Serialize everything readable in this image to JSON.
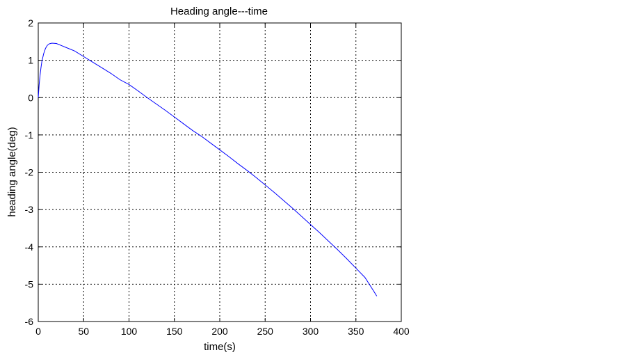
{
  "chart_data": {
    "type": "line",
    "title": "Heading angle---time",
    "xlabel": "time(s)",
    "ylabel": "heading angle(deg)",
    "xlim": [
      0,
      400
    ],
    "ylim": [
      -6,
      2
    ],
    "xticks": [
      0,
      50,
      100,
      150,
      200,
      250,
      300,
      350,
      400
    ],
    "yticks": [
      -6,
      -5,
      -4,
      -3,
      -2,
      -1,
      0,
      1,
      2
    ],
    "grid": true,
    "line_color": "#0000ff",
    "series": [
      {
        "x": [
          0,
          1,
          2,
          3,
          4,
          6,
          8,
          10,
          12,
          15,
          20,
          25,
          30,
          40,
          50,
          60,
          70,
          80,
          90,
          100,
          110,
          120,
          130,
          140,
          150,
          160,
          170,
          180,
          190,
          200,
          210,
          220,
          230,
          240,
          250,
          260,
          270,
          280,
          290,
          300,
          310,
          320,
          330,
          340,
          350,
          360,
          370,
          373
        ],
        "y": [
          0,
          0.35,
          0.6,
          0.8,
          0.97,
          1.18,
          1.32,
          1.4,
          1.44,
          1.46,
          1.45,
          1.4,
          1.35,
          1.25,
          1.1,
          0.95,
          0.8,
          0.65,
          0.48,
          0.35,
          0.18,
          0.0,
          -0.17,
          -0.34,
          -0.52,
          -0.7,
          -0.88,
          -1.04,
          -1.22,
          -1.4,
          -1.58,
          -1.77,
          -1.95,
          -2.14,
          -2.34,
          -2.54,
          -2.75,
          -2.96,
          -3.18,
          -3.4,
          -3.62,
          -3.85,
          -4.08,
          -4.32,
          -4.57,
          -4.82,
          -5.2,
          -5.32
        ]
      }
    ]
  }
}
